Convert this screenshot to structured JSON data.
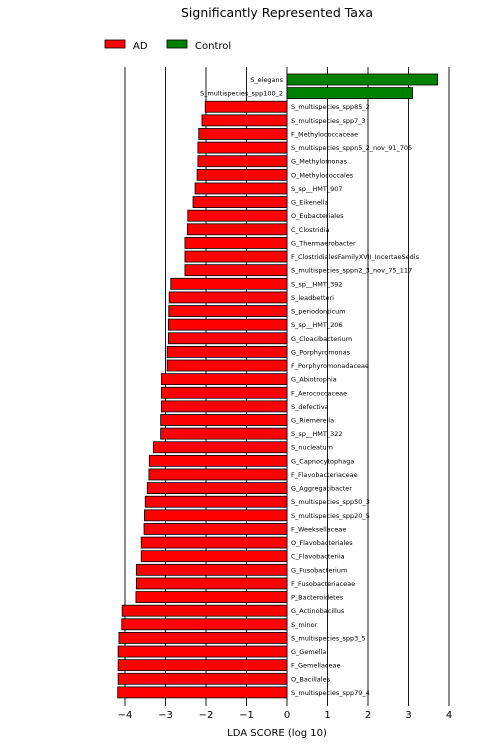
{
  "chart_data": {
    "type": "bar",
    "orientation": "horizontal",
    "title": "Significantly Represented Taxa",
    "xlabel": "LDA SCORE (log 10)",
    "ylabel": "",
    "xlim": [
      -4.5,
      4.5
    ],
    "xticks": [
      -4,
      -3,
      -2,
      -1,
      0,
      1,
      2,
      3,
      4
    ],
    "grid": "vertical lines at integer ticks",
    "legend_position": "top-left",
    "series": [
      {
        "name": "AD",
        "color": "#ff0000"
      },
      {
        "name": "Control",
        "color": "#008000"
      }
    ],
    "bars": [
      {
        "label": "S_elegans",
        "value": 3.72,
        "group": "Control"
      },
      {
        "label": "S_multispecies_spp100_2",
        "value": 3.1,
        "group": "Control"
      },
      {
        "label": "S_multispecies_spp85_2",
        "value": -2.02,
        "group": "AD"
      },
      {
        "label": "S_multispecies_spp7_3",
        "value": -2.1,
        "group": "AD"
      },
      {
        "label": "F_Methylococcaceae",
        "value": -2.18,
        "group": "AD"
      },
      {
        "label": "S_multispecies_sppn5_2_nov_91_705",
        "value": -2.2,
        "group": "AD"
      },
      {
        "label": "G_Methylomonas",
        "value": -2.2,
        "group": "AD"
      },
      {
        "label": "O_Methylococcales",
        "value": -2.22,
        "group": "AD"
      },
      {
        "label": "S_sp__HMT_907",
        "value": -2.27,
        "group": "AD"
      },
      {
        "label": "G_Eikenella",
        "value": -2.32,
        "group": "AD"
      },
      {
        "label": "O_Eubacteriales",
        "value": -2.45,
        "group": "AD"
      },
      {
        "label": "C_Clostridia",
        "value": -2.46,
        "group": "AD"
      },
      {
        "label": "G_Thermaerobacter",
        "value": -2.52,
        "group": "AD"
      },
      {
        "label": "F_ClostridialesFamilyXVII_IncertaeSedis",
        "value": -2.52,
        "group": "AD"
      },
      {
        "label": "S_multispecies_sppn2_3_nov_75_117",
        "value": -2.52,
        "group": "AD"
      },
      {
        "label": "S_sp__HMT_392",
        "value": -2.87,
        "group": "AD"
      },
      {
        "label": "S_leadbetteri",
        "value": -2.91,
        "group": "AD"
      },
      {
        "label": "S_periodonticum",
        "value": -2.92,
        "group": "AD"
      },
      {
        "label": "S_sp__HMT_206",
        "value": -2.93,
        "group": "AD"
      },
      {
        "label": "G_Cloacibacterium",
        "value": -2.93,
        "group": "AD"
      },
      {
        "label": "G_Porphyromonas",
        "value": -2.96,
        "group": "AD"
      },
      {
        "label": "F_Porphyromonadaceae",
        "value": -2.96,
        "group": "AD"
      },
      {
        "label": "G_Abiotrophia",
        "value": -3.1,
        "group": "AD"
      },
      {
        "label": "F_Aerococcaceae",
        "value": -3.1,
        "group": "AD"
      },
      {
        "label": "S_defectiva",
        "value": -3.1,
        "group": "AD"
      },
      {
        "label": "G_Riemerella",
        "value": -3.12,
        "group": "AD"
      },
      {
        "label": "S_sp__HMT_322",
        "value": -3.12,
        "group": "AD"
      },
      {
        "label": "S_nucleatum",
        "value": -3.3,
        "group": "AD"
      },
      {
        "label": "G_Capnocytophaga",
        "value": -3.4,
        "group": "AD"
      },
      {
        "label": "F_Flavobacteriaceae",
        "value": -3.41,
        "group": "AD"
      },
      {
        "label": "G_Aggregatibacter",
        "value": -3.45,
        "group": "AD"
      },
      {
        "label": "S_multispecies_spp50_3",
        "value": -3.5,
        "group": "AD"
      },
      {
        "label": "S_multispecies_spp20_5",
        "value": -3.52,
        "group": "AD"
      },
      {
        "label": "F_Weeksellaceae",
        "value": -3.53,
        "group": "AD"
      },
      {
        "label": "O_Flavobacteriales",
        "value": -3.6,
        "group": "AD"
      },
      {
        "label": "C_Flavobacteriia",
        "value": -3.6,
        "group": "AD"
      },
      {
        "label": "G_Fusobacterium",
        "value": -3.72,
        "group": "AD"
      },
      {
        "label": "F_Fusobacteriaceae",
        "value": -3.72,
        "group": "AD"
      },
      {
        "label": "P_Bacteroidetes",
        "value": -3.73,
        "group": "AD"
      },
      {
        "label": "G_Actinobacillus",
        "value": -4.07,
        "group": "AD"
      },
      {
        "label": "S_minor",
        "value": -4.08,
        "group": "AD"
      },
      {
        "label": "S_multispecies_spp3_5",
        "value": -4.15,
        "group": "AD"
      },
      {
        "label": "G_Gemella",
        "value": -4.17,
        "group": "AD"
      },
      {
        "label": "F_Gemellaceae",
        "value": -4.17,
        "group": "AD"
      },
      {
        "label": "O_Bacillales",
        "value": -4.17,
        "group": "AD"
      },
      {
        "label": "S_multispecies_spp79_4",
        "value": -4.18,
        "group": "AD"
      }
    ]
  }
}
